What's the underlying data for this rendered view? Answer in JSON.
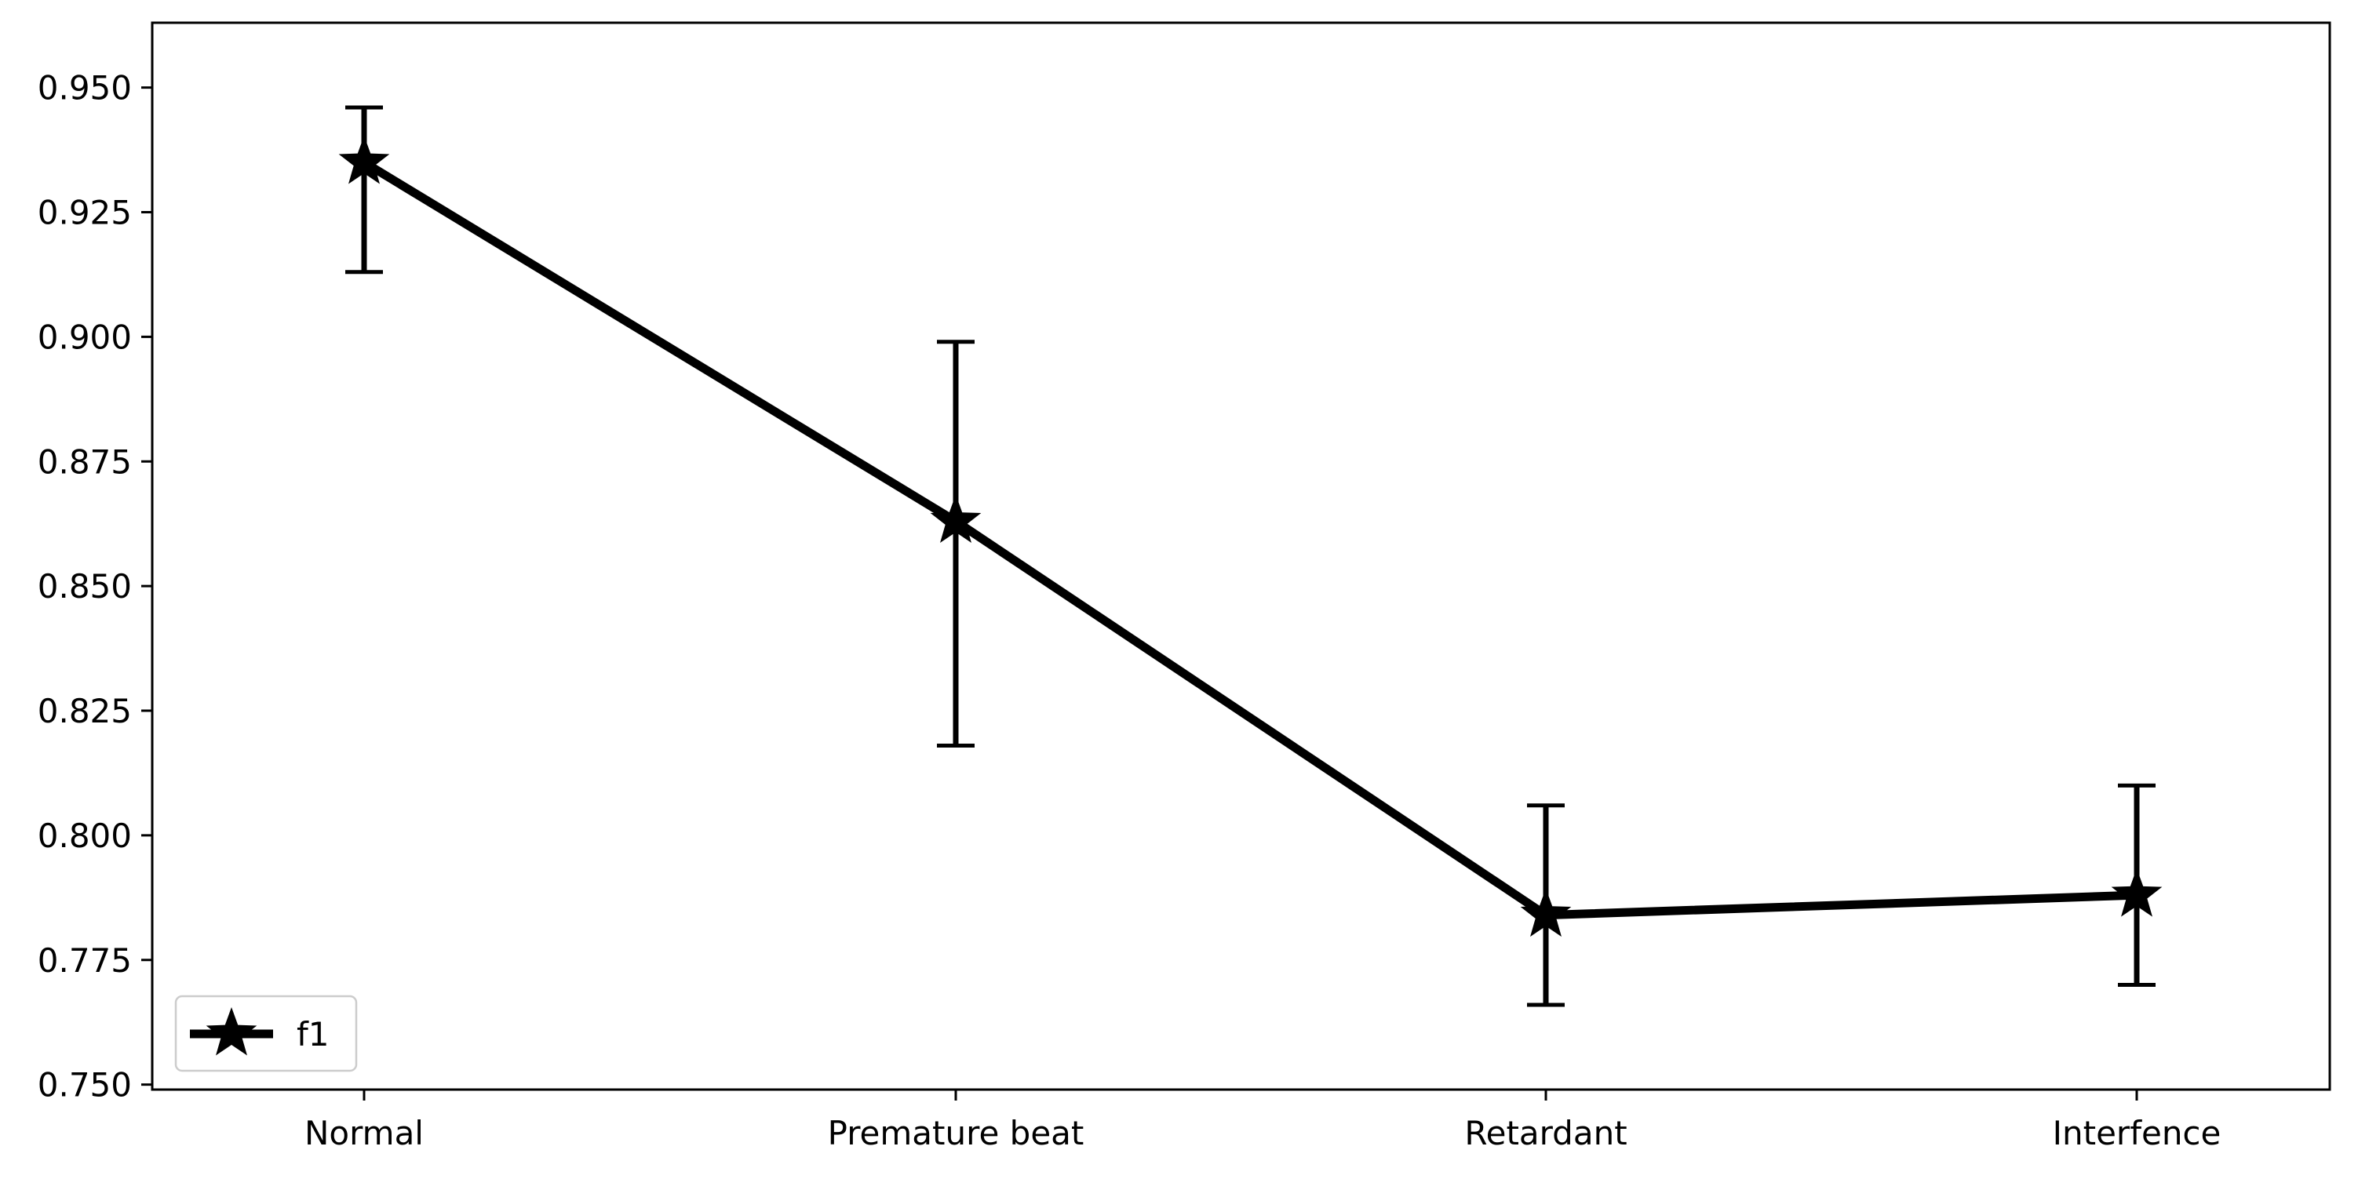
{
  "chart_data": {
    "type": "line",
    "title": "",
    "xlabel": "",
    "ylabel": "",
    "categories": [
      "Normal",
      "Premature beat",
      "Retardant",
      "Interfence"
    ],
    "series": [
      {
        "name": "f1",
        "marker": "star",
        "color": "#000000",
        "values": [
          0.935,
          0.863,
          0.784,
          0.788
        ],
        "error_lower": [
          0.913,
          0.818,
          0.766,
          0.77
        ],
        "error_upper": [
          0.946,
          0.899,
          0.806,
          0.81
        ]
      }
    ],
    "ylim": [
      0.749,
      0.963
    ],
    "yticks": [
      0.75,
      0.775,
      0.8,
      0.825,
      0.85,
      0.875,
      0.9,
      0.925,
      0.95
    ],
    "ytick_labels": [
      "0.750",
      "0.775",
      "0.800",
      "0.825",
      "0.850",
      "0.875",
      "0.900",
      "0.925",
      "0.950"
    ],
    "grid": false,
    "legend": {
      "position": "lower-left",
      "entries": [
        "f1"
      ]
    }
  }
}
